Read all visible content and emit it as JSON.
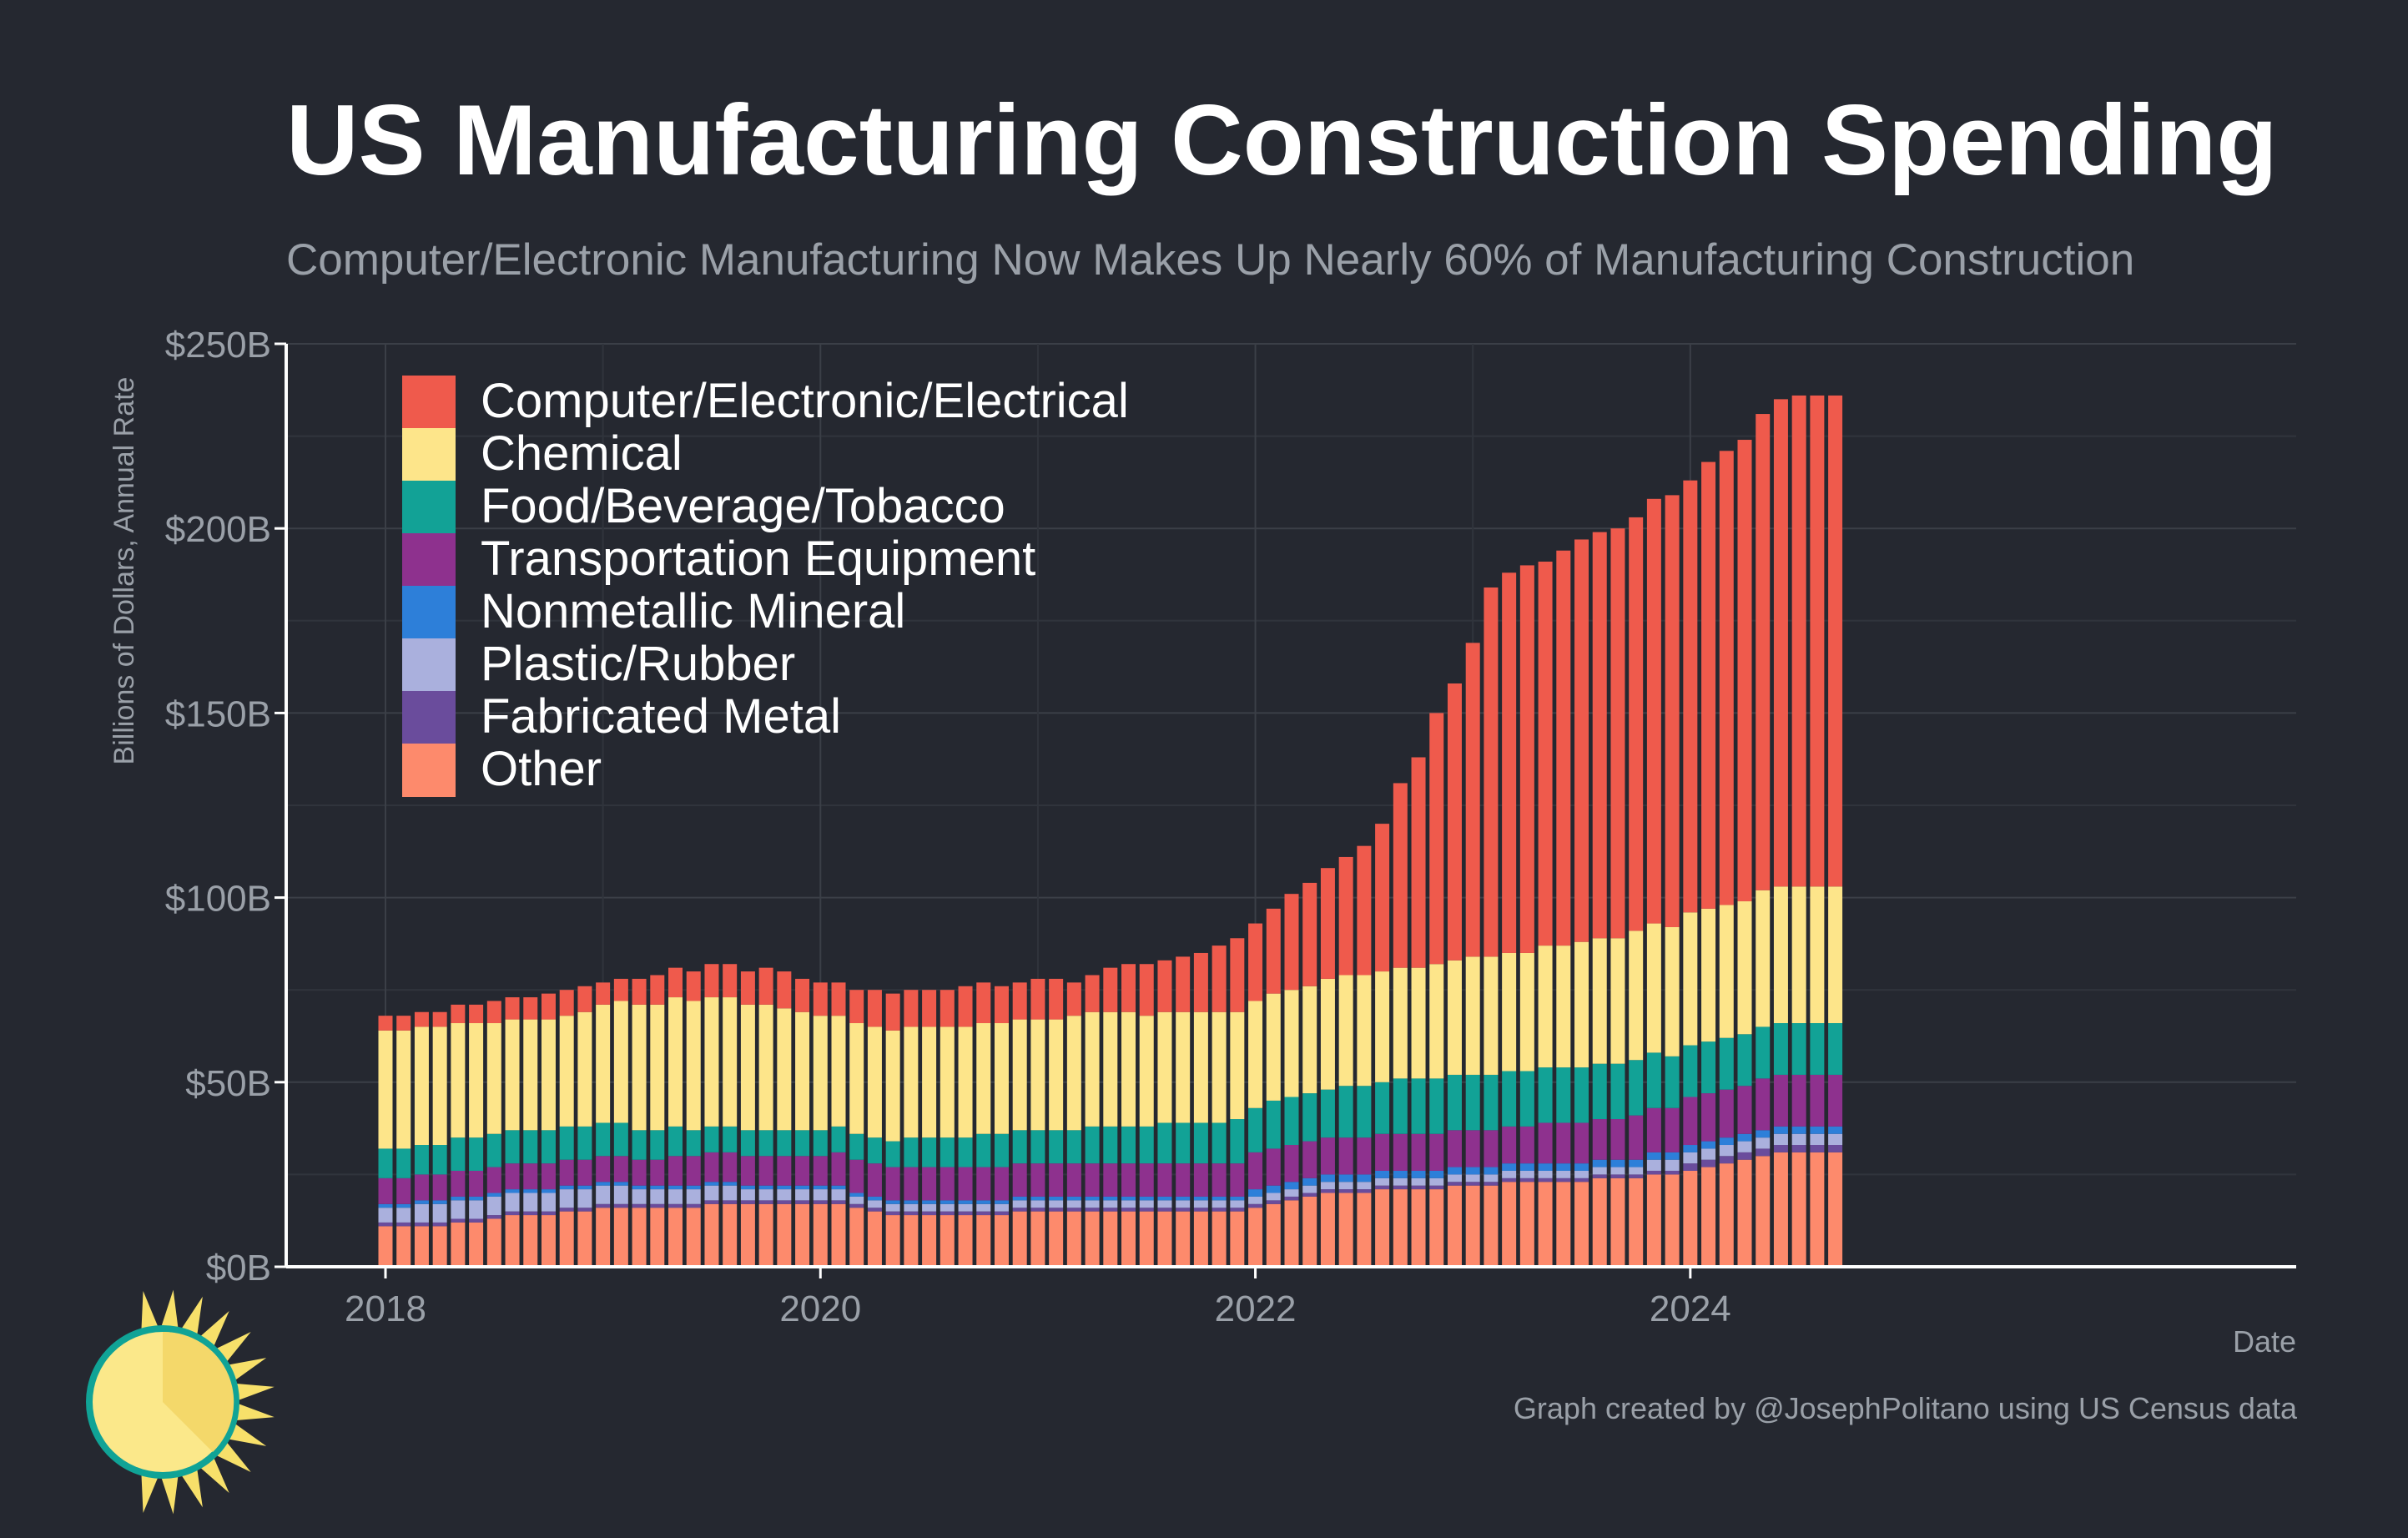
{
  "title": "US Manufacturing Construction Spending",
  "subtitle": "Computer/Electronic Manufacturing Now Makes Up Nearly 60% of Manufacturing Construction",
  "credit": "Graph created by @JosephPolitano using US Census data",
  "colors": {
    "background": "#252830",
    "grid": "#3b3f47",
    "axis": "#ffffff",
    "muted_text": "#9aa0a8"
  },
  "chart_data": {
    "type": "bar",
    "stacked": true,
    "title": "US Manufacturing Construction Spending",
    "subtitle": "Computer/Electronic Manufacturing Now Makes Up Nearly 60% of Manufacturing Construction",
    "xlabel": "Date",
    "ylabel": "Billions of Dollars, Annual Rate",
    "ylim": [
      0,
      250
    ],
    "yticks": [
      0,
      50,
      100,
      150,
      200,
      250
    ],
    "ytick_labels": [
      "$0B",
      "$50B",
      "$100B",
      "$150B",
      "$200B",
      "$250B"
    ],
    "xtick_labels": [
      "2018",
      "2020",
      "2022",
      "2024"
    ],
    "xtick_index": [
      0,
      24,
      48,
      72
    ],
    "legend_position": "top-left",
    "x_start": "2018-01",
    "n_months": 81,
    "series": [
      {
        "name": "Computer/Electronic/Electrical",
        "color": "#ef5a4c",
        "values": [
          4,
          4,
          4,
          4,
          5,
          5,
          6,
          6,
          6,
          7,
          7,
          7,
          6,
          6,
          7,
          8,
          8,
          8,
          9,
          9,
          9,
          10,
          10,
          9,
          9,
          9,
          9,
          10,
          10,
          10,
          10,
          10,
          11,
          11,
          10,
          10,
          11,
          11,
          9,
          10,
          12,
          13,
          14,
          14,
          15,
          16,
          18,
          20,
          21,
          23,
          26,
          28,
          30,
          32,
          35,
          40,
          50,
          57,
          68,
          75,
          85,
          100,
          103,
          105,
          104,
          107,
          109,
          110,
          111,
          112,
          115,
          117,
          117,
          121,
          123,
          125,
          129,
          132,
          133,
          133,
          133
        ]
      },
      {
        "name": "Chemical",
        "color": "#fde58a",
        "values": [
          32,
          32,
          32,
          32,
          31,
          31,
          30,
          30,
          30,
          30,
          30,
          31,
          32,
          33,
          34,
          34,
          35,
          35,
          35,
          35,
          34,
          34,
          33,
          32,
          31,
          30,
          30,
          30,
          30,
          30,
          30,
          30,
          30,
          30,
          30,
          30,
          30,
          30,
          31,
          31,
          31,
          31,
          30,
          30,
          30,
          30,
          30,
          29,
          29,
          29,
          29,
          29,
          30,
          30,
          30,
          30,
          30,
          30,
          31,
          31,
          32,
          32,
          32,
          32,
          33,
          33,
          34,
          34,
          34,
          35,
          35,
          35,
          36,
          36,
          36,
          36,
          37,
          37,
          37,
          37,
          37
        ]
      },
      {
        "name": "Food/Beverage/Tobacco",
        "color": "#12a296",
        "values": [
          8,
          8,
          8,
          8,
          9,
          9,
          9,
          9,
          9,
          9,
          9,
          9,
          9,
          9,
          8,
          8,
          8,
          7,
          7,
          7,
          7,
          7,
          7,
          7,
          7,
          7,
          7,
          7,
          7,
          8,
          8,
          8,
          8,
          9,
          9,
          9,
          9,
          9,
          9,
          10,
          10,
          10,
          10,
          11,
          11,
          11,
          11,
          12,
          12,
          13,
          13,
          13,
          13,
          14,
          14,
          14,
          15,
          15,
          15,
          15,
          15,
          15,
          15,
          15,
          15,
          15,
          15,
          15,
          15,
          15,
          15,
          14,
          14,
          14,
          14,
          14,
          14,
          14,
          14,
          14,
          14
        ]
      },
      {
        "name": "Transportation Equipment",
        "color": "#8e318e",
        "values": [
          7,
          7,
          7,
          7,
          7,
          7,
          7,
          7,
          7,
          7,
          7,
          7,
          7,
          7,
          7,
          7,
          8,
          8,
          8,
          8,
          8,
          8,
          8,
          8,
          8,
          9,
          9,
          9,
          9,
          9,
          9,
          9,
          9,
          9,
          9,
          9,
          9,
          9,
          9,
          9,
          9,
          9,
          9,
          9,
          9,
          9,
          9,
          9,
          10,
          10,
          10,
          10,
          10,
          10,
          10,
          10,
          10,
          10,
          10,
          10,
          10,
          10,
          10,
          10,
          11,
          11,
          11,
          11,
          11,
          12,
          12,
          12,
          13,
          13,
          13,
          13,
          14,
          14,
          14,
          14,
          14
        ]
      },
      {
        "name": "Nonmetallic Mineral",
        "color": "#2d7fd9",
        "values": [
          1,
          1,
          1,
          1,
          1,
          1,
          1,
          1,
          1,
          1,
          1,
          1,
          1,
          1,
          1,
          1,
          1,
          1,
          1,
          1,
          1,
          1,
          1,
          1,
          1,
          1,
          1,
          1,
          1,
          1,
          1,
          1,
          1,
          1,
          1,
          1,
          1,
          1,
          1,
          1,
          1,
          1,
          1,
          1,
          1,
          1,
          1,
          1,
          2,
          2,
          2,
          2,
          2,
          2,
          2,
          2,
          2,
          2,
          2,
          2,
          2,
          2,
          2,
          2,
          2,
          2,
          2,
          2,
          2,
          2,
          2,
          2,
          2,
          2,
          2,
          2,
          2,
          2,
          2,
          2,
          2
        ]
      },
      {
        "name": "Plastic/Rubber",
        "color": "#aab0dd",
        "values": [
          4,
          4,
          5,
          5,
          5,
          5,
          5,
          5,
          5,
          5,
          5,
          5,
          5,
          5,
          4,
          4,
          4,
          4,
          4,
          4,
          3,
          3,
          3,
          3,
          3,
          3,
          2,
          2,
          2,
          2,
          2,
          2,
          2,
          2,
          2,
          2,
          2,
          2,
          2,
          2,
          2,
          2,
          2,
          2,
          2,
          2,
          2,
          2,
          2,
          2,
          2,
          2,
          2,
          2,
          2,
          2,
          2,
          2,
          2,
          2,
          2,
          2,
          2,
          2,
          2,
          2,
          2,
          2,
          2,
          2,
          3,
          3,
          3,
          3,
          3,
          3,
          3,
          3,
          3,
          3,
          3
        ]
      },
      {
        "name": "Fabricated Metal",
        "color": "#6a4c9c",
        "values": [
          1,
          1,
          1,
          1,
          1,
          1,
          1,
          1,
          1,
          1,
          1,
          1,
          1,
          1,
          1,
          1,
          1,
          1,
          1,
          1,
          1,
          1,
          1,
          1,
          1,
          1,
          1,
          1,
          1,
          1,
          1,
          1,
          1,
          1,
          1,
          1,
          1,
          1,
          1,
          1,
          1,
          1,
          1,
          1,
          1,
          1,
          1,
          1,
          1,
          1,
          1,
          1,
          1,
          1,
          1,
          1,
          1,
          1,
          1,
          1,
          1,
          1,
          1,
          1,
          1,
          1,
          1,
          1,
          1,
          1,
          1,
          1,
          2,
          2,
          2,
          2,
          2,
          2,
          2,
          2,
          2
        ]
      },
      {
        "name": "Other",
        "color": "#fd8a6c",
        "values": [
          11,
          11,
          11,
          11,
          12,
          12,
          13,
          14,
          14,
          14,
          15,
          15,
          16,
          16,
          16,
          16,
          16,
          16,
          17,
          17,
          17,
          17,
          17,
          17,
          17,
          17,
          16,
          15,
          14,
          14,
          14,
          14,
          14,
          14,
          14,
          15,
          15,
          15,
          15,
          15,
          15,
          15,
          15,
          15,
          15,
          15,
          15,
          15,
          16,
          17,
          18,
          19,
          20,
          20,
          20,
          21,
          21,
          21,
          21,
          22,
          22,
          22,
          23,
          23,
          23,
          23,
          23,
          24,
          24,
          24,
          25,
          25,
          26,
          27,
          28,
          29,
          30,
          31,
          31,
          31,
          31
        ]
      }
    ]
  }
}
